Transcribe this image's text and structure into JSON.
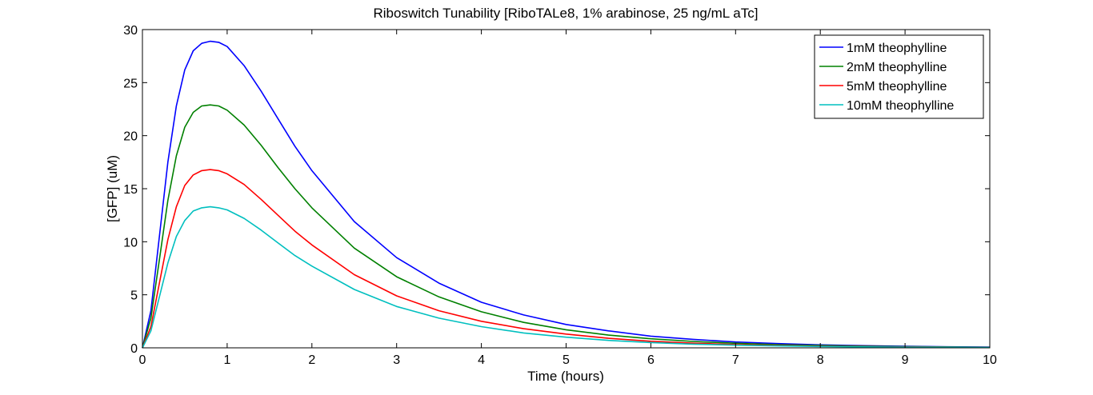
{
  "chart_data": {
    "type": "line",
    "title": "Riboswitch Tunability [RiboTALe8, 1% arabinose, 25 ng/mL aTc]",
    "xlabel": "Time (hours)",
    "ylabel": "[GFP] (uM)",
    "xlim": [
      0,
      10
    ],
    "ylim": [
      0,
      30
    ],
    "xticks": [
      0,
      1,
      2,
      3,
      4,
      5,
      6,
      7,
      8,
      9,
      10
    ],
    "yticks": [
      0,
      5,
      10,
      15,
      20,
      25,
      30
    ],
    "grid": false,
    "legend_position": "top-right",
    "x": [
      0,
      0.1,
      0.2,
      0.3,
      0.4,
      0.5,
      0.6,
      0.7,
      0.8,
      0.9,
      1.0,
      1.2,
      1.4,
      1.6,
      1.8,
      2.0,
      2.5,
      3.0,
      3.5,
      4.0,
      4.5,
      5.0,
      5.5,
      6.0,
      6.5,
      7.0,
      7.5,
      8.0,
      8.5,
      9.0,
      9.5,
      10.0
    ],
    "series": [
      {
        "name": "1mM theophylline",
        "color": "#0000ff",
        "values": [
          0,
          3.5,
          10.5,
          17.5,
          22.8,
          26.2,
          28.0,
          28.7,
          28.9,
          28.8,
          28.4,
          26.6,
          24.2,
          21.6,
          19.0,
          16.7,
          11.9,
          8.5,
          6.1,
          4.3,
          3.1,
          2.2,
          1.6,
          1.1,
          0.8,
          0.55,
          0.4,
          0.28,
          0.2,
          0.15,
          0.1,
          0.07
        ]
      },
      {
        "name": "2mM theophylline",
        "color": "#008000",
        "values": [
          0,
          2.8,
          8.3,
          13.9,
          18.1,
          20.8,
          22.2,
          22.8,
          22.9,
          22.8,
          22.4,
          21.0,
          19.1,
          17.0,
          15.0,
          13.2,
          9.4,
          6.7,
          4.8,
          3.4,
          2.4,
          1.7,
          1.2,
          0.85,
          0.6,
          0.43,
          0.3,
          0.22,
          0.16,
          0.11,
          0.08,
          0.05
        ]
      },
      {
        "name": "5mM theophylline",
        "color": "#ff0000",
        "values": [
          0,
          2.0,
          6.1,
          10.2,
          13.3,
          15.3,
          16.3,
          16.7,
          16.8,
          16.7,
          16.4,
          15.4,
          14.0,
          12.5,
          11.0,
          9.7,
          6.9,
          4.9,
          3.5,
          2.5,
          1.8,
          1.3,
          0.9,
          0.62,
          0.44,
          0.31,
          0.22,
          0.16,
          0.11,
          0.08,
          0.06,
          0.04
        ]
      },
      {
        "name": "10mM theophylline",
        "color": "#00bfbf",
        "values": [
          0,
          1.6,
          4.8,
          8.0,
          10.5,
          12.0,
          12.9,
          13.2,
          13.3,
          13.2,
          13.0,
          12.2,
          11.1,
          9.9,
          8.7,
          7.7,
          5.5,
          3.9,
          2.8,
          2.0,
          1.4,
          1.0,
          0.7,
          0.5,
          0.35,
          0.25,
          0.18,
          0.13,
          0.09,
          0.06,
          0.05,
          0.03
        ]
      }
    ]
  }
}
